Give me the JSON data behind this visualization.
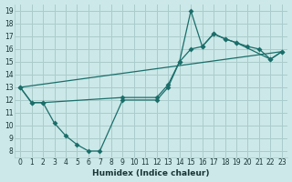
{
  "xlabel": "Humidex (Indice chaleur)",
  "bg_color": "#cce8e8",
  "grid_color": "#aacccc",
  "line_color": "#1a6e6a",
  "xlim": [
    -0.5,
    23.5
  ],
  "ylim": [
    7.5,
    19.5
  ],
  "xticks": [
    0,
    1,
    2,
    3,
    4,
    5,
    6,
    7,
    8,
    9,
    10,
    11,
    12,
    13,
    14,
    15,
    16,
    17,
    18,
    19,
    20,
    21,
    22,
    23
  ],
  "yticks": [
    8,
    9,
    10,
    11,
    12,
    13,
    14,
    15,
    16,
    17,
    18,
    19
  ],
  "curve1_x": [
    0,
    1,
    2,
    3,
    4,
    5,
    6,
    7,
    9,
    12,
    13,
    14,
    15,
    16,
    17,
    18,
    19,
    20,
    21,
    22,
    23
  ],
  "curve1_y": [
    13,
    11.8,
    11.8,
    10.2,
    9.2,
    8.5,
    8.0,
    8.0,
    12.0,
    12.0,
    13.0,
    15.0,
    19.0,
    16.2,
    17.2,
    16.8,
    16.5,
    16.2,
    16.0,
    15.2,
    15.8
  ],
  "curve2_x": [
    0,
    1,
    2,
    9,
    12,
    13,
    14,
    15,
    16,
    17,
    18,
    19,
    22,
    23
  ],
  "curve2_y": [
    13,
    11.8,
    11.8,
    12.2,
    12.2,
    13.2,
    15.0,
    16.0,
    16.2,
    17.2,
    16.8,
    16.5,
    15.2,
    15.8
  ],
  "curve3_x": [
    0,
    23
  ],
  "curve3_y": [
    13,
    15.8
  ]
}
